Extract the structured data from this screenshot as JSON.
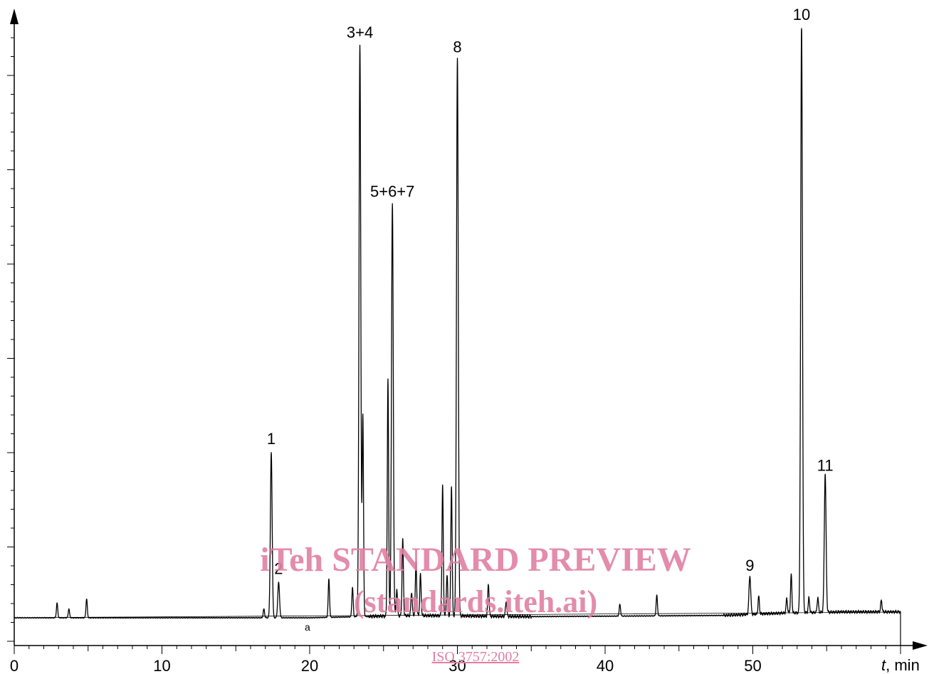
{
  "chart_data": {
    "type": "line",
    "xlabel_italic": "t",
    "xlabel_unit": ", min",
    "xlim": [
      0,
      60
    ],
    "ylim": [
      0,
      100
    ],
    "x_ticks": [
      "0",
      "10",
      "20",
      "30",
      "40",
      "50"
    ],
    "grid": false,
    "baseline_marker": "a",
    "peaks": [
      {
        "label": "1",
        "x": 17.4,
        "y": 28
      },
      {
        "label": "2",
        "x": 17.9,
        "y": 6
      },
      {
        "label": "3+4",
        "x": 23.4,
        "y": 97
      },
      {
        "label": "5+6+7",
        "x": 25.6,
        "y": 70
      },
      {
        "label": "8",
        "x": 30.0,
        "y": 94.5
      },
      {
        "label": "9",
        "x": 49.8,
        "y": 6.5
      },
      {
        "label": "10",
        "x": 53.3,
        "y": 100
      },
      {
        "label": "11",
        "x": 54.9,
        "y": 23.5
      }
    ],
    "minor_peaks": [
      {
        "x": 2.9,
        "y": 2.5
      },
      {
        "x": 3.7,
        "y": 1.5
      },
      {
        "x": 4.9,
        "y": 3.2
      },
      {
        "x": 16.9,
        "y": 1.5
      },
      {
        "x": 21.3,
        "y": 6.5
      },
      {
        "x": 22.9,
        "y": 5
      },
      {
        "x": 23.6,
        "y": 34
      },
      {
        "x": 25.3,
        "y": 40
      },
      {
        "x": 25.9,
        "y": 4.5
      },
      {
        "x": 26.3,
        "y": 13
      },
      {
        "x": 26.9,
        "y": 4
      },
      {
        "x": 27.2,
        "y": 9
      },
      {
        "x": 27.5,
        "y": 7
      },
      {
        "x": 29.0,
        "y": 22
      },
      {
        "x": 29.3,
        "y": 7
      },
      {
        "x": 29.6,
        "y": 22
      },
      {
        "x": 32.1,
        "y": 5.5
      },
      {
        "x": 33.3,
        "y": 2.5
      },
      {
        "x": 41.0,
        "y": 2
      },
      {
        "x": 43.5,
        "y": 3.5
      },
      {
        "x": 50.4,
        "y": 3
      },
      {
        "x": 52.3,
        "y": 2.5
      },
      {
        "x": 52.6,
        "y": 6.5
      },
      {
        "x": 53.8,
        "y": 2.5
      },
      {
        "x": 54.4,
        "y": 2.5
      },
      {
        "x": 58.7,
        "y": 2
      }
    ],
    "baseline": [
      {
        "x": 0,
        "y": 0
      },
      {
        "x": 20,
        "y": 0
      },
      {
        "x": 27,
        "y": 0.4
      },
      {
        "x": 35,
        "y": 0.2
      },
      {
        "x": 42,
        "y": 0.3
      },
      {
        "x": 48,
        "y": 0.4
      },
      {
        "x": 52,
        "y": 0.8
      },
      {
        "x": 56,
        "y": 1.0
      },
      {
        "x": 60,
        "y": 1.0
      }
    ]
  },
  "watermark": {
    "line1": "iTeh STANDARD PREVIEW",
    "line2": "(standards.iteh.ai)",
    "line3": "ISO 3757:2002"
  }
}
